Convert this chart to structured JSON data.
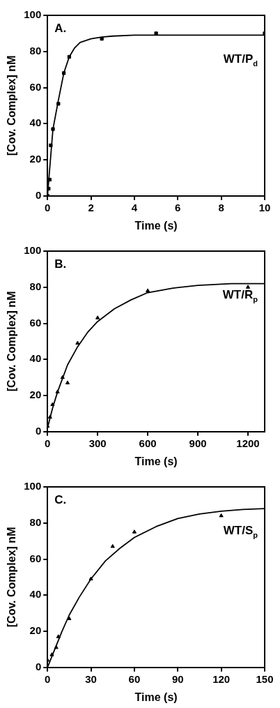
{
  "chart_data": [
    {
      "type": "scatter",
      "xlabel": "Time (s)",
      "ylabel": "[Cov. Complex] nM",
      "annotations": [
        "A.",
        "WT/P$_{d}$"
      ],
      "xlim": [
        0,
        10
      ],
      "xticks": [
        0,
        2,
        4,
        6,
        8,
        10
      ],
      "ylim": [
        0,
        100
      ],
      "yticks": [
        0,
        20,
        40,
        60,
        80,
        100
      ],
      "grid": false,
      "legend": false,
      "series": [
        {
          "type": "scatter",
          "marker": "square",
          "color": "#000000",
          "x": [
            0,
            0.05,
            0.1,
            0.15,
            0.25,
            0.5,
            0.75,
            1,
            2.5,
            5,
            10
          ],
          "values": [
            0,
            4,
            9,
            28,
            37,
            51,
            68,
            77,
            87,
            90,
            90
          ]
        },
        {
          "type": "line",
          "marker": "none",
          "color": "#000000",
          "x": [
            0,
            0.1,
            0.25,
            0.5,
            0.75,
            1,
            1.25,
            1.5,
            2,
            2.5,
            3,
            4,
            10
          ],
          "values": [
            0,
            15,
            37,
            53,
            68,
            77,
            82,
            85,
            87,
            88,
            88.5,
            89,
            89
          ]
        }
      ]
    },
    {
      "type": "scatter",
      "xlabel": "Time (s)",
      "ylabel": "[Cov. Complex] nM",
      "annotations": [
        "B.",
        "WT/R$_{p}$"
      ],
      "xlim": [
        0,
        1300
      ],
      "xticks": [
        0,
        300,
        600,
        900,
        1200
      ],
      "ylim": [
        0,
        100
      ],
      "yticks": [
        0,
        20,
        40,
        60,
        80,
        100
      ],
      "grid": false,
      "legend": false,
      "series": [
        {
          "type": "scatter",
          "marker": "triangle",
          "color": "#000000",
          "x": [
            0,
            15,
            30,
            60,
            90,
            120,
            180,
            300,
            600,
            1200
          ],
          "values": [
            3,
            8,
            15,
            22,
            30,
            27,
            49,
            63,
            78,
            80
          ]
        },
        {
          "type": "line",
          "marker": "none",
          "color": "#000000",
          "x": [
            0,
            30,
            60,
            120,
            180,
            240,
            300,
            400,
            500,
            600,
            750,
            900,
            1100,
            1300
          ],
          "values": [
            2,
            13,
            22,
            37,
            47,
            55,
            61,
            68,
            73,
            77,
            79.5,
            81,
            82,
            82
          ]
        }
      ]
    },
    {
      "type": "scatter",
      "xlabel": "Time (s)",
      "ylabel": "[Cov. Complex] nM",
      "annotations": [
        "C.",
        "WT/S$_{p}$"
      ],
      "xlim": [
        0,
        150
      ],
      "xticks": [
        0,
        30,
        60,
        90,
        120,
        150
      ],
      "ylim": [
        0,
        100
      ],
      "yticks": [
        0,
        20,
        40,
        60,
        80,
        100
      ],
      "grid": false,
      "legend": false,
      "series": [
        {
          "type": "scatter",
          "marker": "triangle",
          "color": "#000000",
          "x": [
            0,
            3,
            6,
            7.5,
            15,
            30,
            45,
            60,
            120
          ],
          "values": [
            4,
            7,
            11,
            17,
            27,
            49,
            67,
            75,
            84
          ]
        },
        {
          "type": "line",
          "marker": "none",
          "color": "#000000",
          "x": [
            0,
            5,
            10,
            15,
            22,
            30,
            40,
            50,
            60,
            75,
            90,
            105,
            120,
            135,
            150
          ],
          "values": [
            0,
            10,
            20,
            29,
            39,
            49,
            59,
            66,
            72,
            78,
            82.5,
            85,
            86.5,
            87.5,
            88
          ]
        }
      ]
    }
  ]
}
